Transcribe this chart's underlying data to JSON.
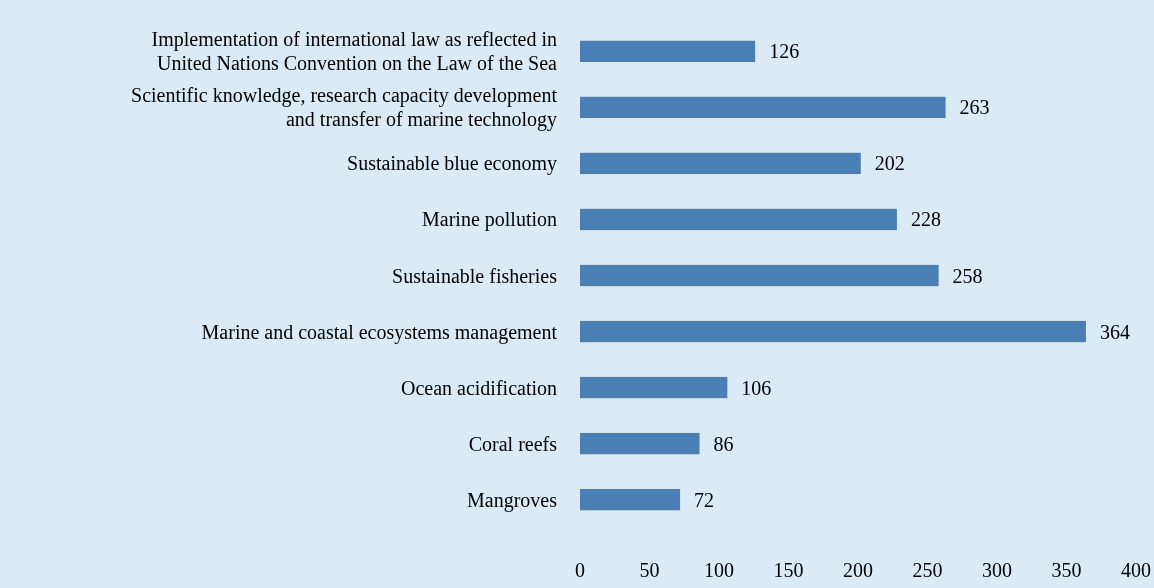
{
  "chart_data": {
    "type": "bar",
    "orientation": "horizontal",
    "categories": [
      "Implementation of international law as reflected in\nUnited Nations Convention on the Law of the Sea",
      "Scientific knowledge, research capacity development\nand transfer of marine technology",
      "Sustainable blue economy",
      "Marine pollution",
      "Sustainable fisheries",
      "Marine and coastal ecosystems management",
      "Ocean acidification",
      "Coral reefs",
      "Mangroves"
    ],
    "values": [
      126,
      263,
      202,
      228,
      258,
      364,
      106,
      86,
      72
    ],
    "color": "#4a7fb5",
    "xlim": [
      0,
      400
    ],
    "xticks": [
      0,
      50,
      100,
      150,
      200,
      250,
      300,
      350,
      400
    ],
    "data_labels": true
  }
}
